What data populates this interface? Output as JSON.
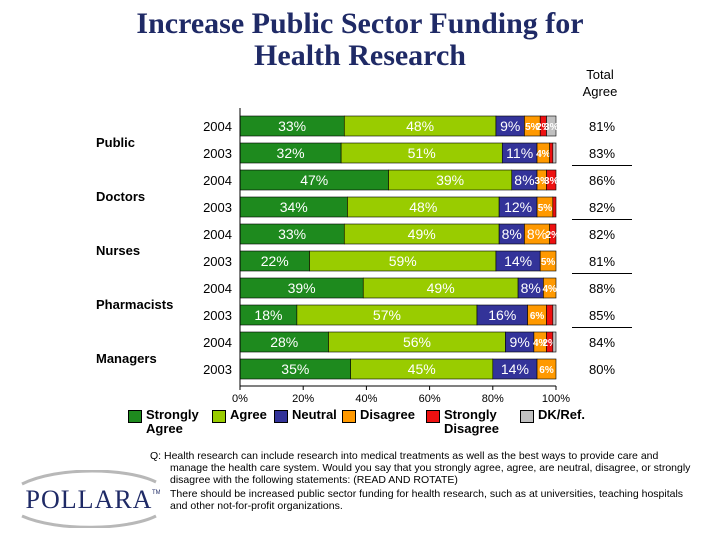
{
  "header": {
    "title": "Increase Public Sector Funding for Health Research",
    "total_agree": "Total Agree"
  },
  "chart_data": {
    "type": "bar",
    "orientation": "horizontal",
    "stacked": true,
    "groups": [
      {
        "name": "Public",
        "rows": [
          {
            "year": "2004",
            "values": [
              33,
              48,
              9,
              5,
              2,
              3
            ],
            "labels": [
              "33%",
              "48%",
              "9%",
              "5%",
              "2%",
              "3%"
            ],
            "total": "81%"
          },
          {
            "year": "2003",
            "values": [
              32,
              51,
              11,
              4,
              1,
              1
            ],
            "labels": [
              "32%",
              "51%",
              "11%",
              "4%",
              "",
              ""
            ],
            "total": "83%"
          }
        ]
      },
      {
        "name": "Doctors",
        "rows": [
          {
            "year": "2004",
            "values": [
              47,
              39,
              8,
              3,
              3,
              0
            ],
            "labels": [
              "47%",
              "39%",
              "8%",
              "3%",
              "3%",
              ""
            ],
            "total": "86%"
          },
          {
            "year": "2003",
            "values": [
              34,
              48,
              12,
              5,
              1,
              0
            ],
            "labels": [
              "34%",
              "48%",
              "12%",
              "5%",
              "",
              ""
            ],
            "total": "82%"
          }
        ]
      },
      {
        "name": "Nurses",
        "rows": [
          {
            "year": "2004",
            "values": [
              33,
              49,
              8,
              8,
              2,
              0
            ],
            "labels": [
              "33%",
              "49%",
              "8%",
              "8%",
              "2%",
              ""
            ],
            "total": "82%"
          },
          {
            "year": "2003",
            "values": [
              22,
              59,
              14,
              5,
              0,
              0
            ],
            "labels": [
              "22%",
              "59%",
              "14%",
              "5%",
              "",
              ""
            ],
            "total": "81%"
          }
        ]
      },
      {
        "name": "Pharmacists",
        "rows": [
          {
            "year": "2004",
            "values": [
              39,
              49,
              8,
              4,
              0,
              0
            ],
            "labels": [
              "39%",
              "49%",
              "8%",
              "4%",
              "",
              ""
            ],
            "total": "88%"
          },
          {
            "year": "2003",
            "values": [
              18,
              57,
              16,
              6,
              2,
              1
            ],
            "labels": [
              "18%",
              "57%",
              "16%",
              "6%",
              "",
              ""
            ],
            "total": "85%"
          }
        ]
      },
      {
        "name": "Managers",
        "rows": [
          {
            "year": "2004",
            "values": [
              28,
              56,
              9,
              4,
              2,
              1
            ],
            "labels": [
              "28%",
              "56%",
              "9%",
              "4%",
              "2%",
              ""
            ],
            "total": "84%"
          },
          {
            "year": "2003",
            "values": [
              35,
              45,
              14,
              6,
              0,
              0
            ],
            "labels": [
              "35%",
              "45%",
              "14%",
              "6%",
              "",
              ""
            ],
            "total": "80%"
          }
        ]
      }
    ],
    "series": [
      {
        "name": "Strongly Agree",
        "color": "#1e8a1e"
      },
      {
        "name": "Agree",
        "color": "#99cc00"
      },
      {
        "name": "Neutral",
        "color": "#333399"
      },
      {
        "name": "Disagree",
        "color": "#ff9900"
      },
      {
        "name": "Strongly Disagree",
        "color": "#ee1111"
      },
      {
        "name": "DK/Ref.",
        "color": "#c0c0c0"
      }
    ],
    "label_colors": [
      "#ffffff",
      "#ffffff",
      "#ffffff",
      "#ffffff",
      "#ffffff",
      "#ffffff"
    ],
    "xlim": [
      0,
      100
    ],
    "x_ticks": [
      "0%",
      "20%",
      "40%",
      "60%",
      "80%",
      "100%"
    ],
    "legend_position": "bottom"
  },
  "legend": {
    "items": [
      {
        "label": "Strongly Agree"
      },
      {
        "label": "Agree"
      },
      {
        "label": "Neutral"
      },
      {
        "label": "Disagree"
      },
      {
        "label": "Strongly Disagree"
      },
      {
        "label": "DK/Ref."
      }
    ]
  },
  "footnote": {
    "question": "Q: Health research can include research into medical treatments as well as the best ways to provide care and manage the health care system. Would you say that you strongly agree, agree, are neutral, disagree, or strongly disagree with the following statements: (READ AND ROTATE)",
    "statement": "There should be increased public sector funding for health research, such as at universities, teaching hospitals and other not-for-profit organizations."
  },
  "logo": {
    "text": "POLLARA",
    "tm": "TM"
  }
}
